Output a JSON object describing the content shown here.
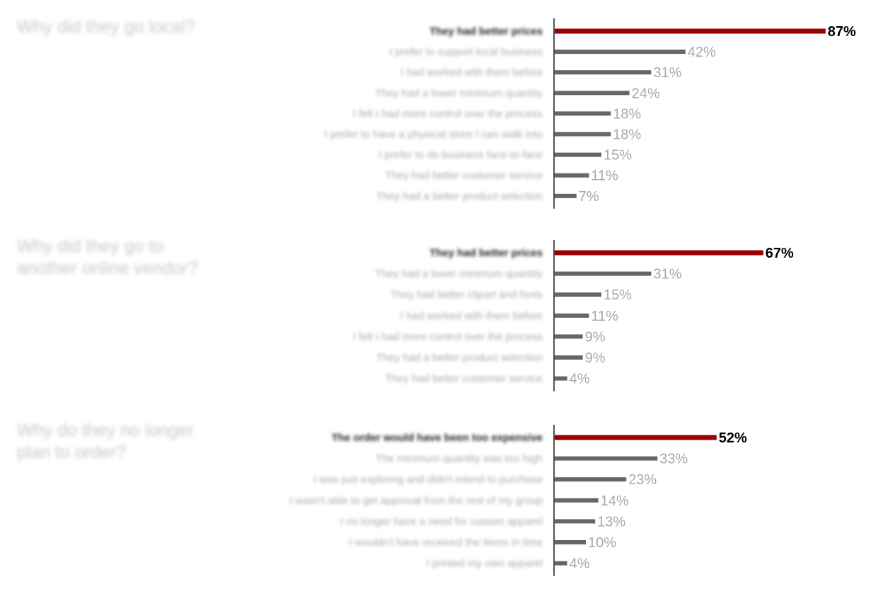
{
  "chart_data": [
    {
      "type": "bar",
      "orientation": "horizontal",
      "title": "Why did they go local?",
      "categories": [
        "They had better prices",
        "I prefer to support local business",
        "I had worked with them before",
        "They had a lower minimum quantity",
        "I felt I had more control over the process",
        "I prefer to have a physical store I can walk into",
        "I prefer to do business face-to-face",
        "They had better customer service",
        "They had a better product selection"
      ],
      "values": [
        87,
        42,
        31,
        24,
        18,
        18,
        15,
        11,
        7
      ],
      "value_labels": [
        "87%",
        "42%",
        "31%",
        "24%",
        "18%",
        "18%",
        "15%",
        "11%",
        "7%"
      ],
      "highlight_index": 0,
      "xlim": [
        0,
        100
      ],
      "grid": false
    },
    {
      "type": "bar",
      "orientation": "horizontal",
      "title": "Why did they go to another online vendor?",
      "categories": [
        "They had better prices",
        "They had a lower minimum quantity",
        "They had better clipart and fonts",
        "I had worked with them before",
        "I felt I had more control over the process",
        "They had a better product selection",
        "They had better customer service"
      ],
      "values": [
        67,
        31,
        15,
        11,
        9,
        9,
        4
      ],
      "value_labels": [
        "67%",
        "31%",
        "15%",
        "11%",
        "9%",
        "9%",
        "4%"
      ],
      "highlight_index": 0,
      "xlim": [
        0,
        100
      ],
      "grid": false
    },
    {
      "type": "bar",
      "orientation": "horizontal",
      "title": "Why do they no longer plan to order?",
      "categories": [
        "The order would have been too expensive",
        "The minimum quantity was too high",
        "I was just exploring and didn't intend to purchase",
        "I wasn't able to get approval from the rest of my group",
        "I no longer have a need for custom apparel",
        "I wouldn't have received the items in time",
        "I printed my own apparel"
      ],
      "values": [
        52,
        33,
        23,
        14,
        13,
        10,
        4
      ],
      "value_labels": [
        "52%",
        "33%",
        "23%",
        "14%",
        "13%",
        "10%",
        "4%"
      ],
      "highlight_index": 0,
      "xlim": [
        0,
        100
      ],
      "grid": false
    }
  ],
  "colors": {
    "highlight_bar": "#990000",
    "bar": "#666666",
    "axis": "#1a1a1a"
  }
}
